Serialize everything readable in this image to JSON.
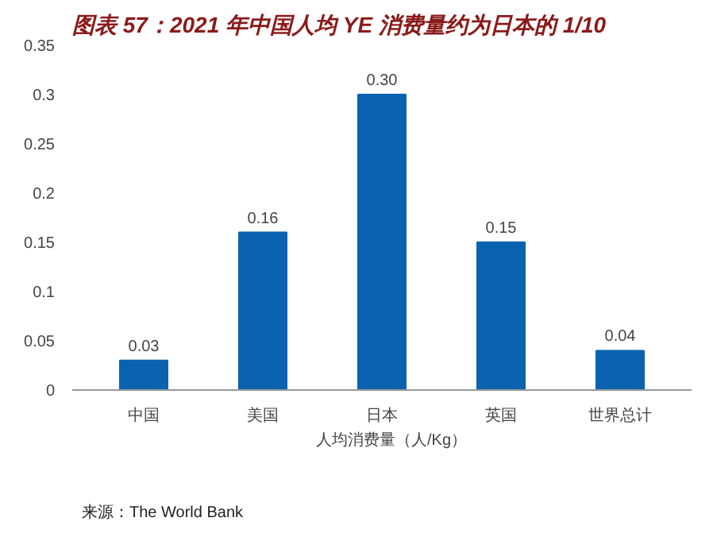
{
  "chart_data": {
    "type": "bar",
    "title": "图表 57：2021 年中国人均 YE 消费量约为日本的 1/10",
    "categories": [
      "中国",
      "美国",
      "日本",
      "英国",
      "世界总计"
    ],
    "series": [
      {
        "name": "人均消费量（人/Kg）",
        "color": "#0b62b0",
        "values": [
          0.03,
          0.16,
          0.3,
          0.15,
          0.04
        ],
        "value_labels": [
          "0.03",
          "0.16",
          "0.30",
          "0.15",
          "0.04"
        ]
      }
    ],
    "ylim": [
      0,
      0.35
    ],
    "yticks": [
      0,
      0.05,
      0.1,
      0.15,
      0.2,
      0.25,
      0.3,
      0.35
    ],
    "grid": false,
    "legend": "bottom",
    "annotations": [
      "来源：The World Bank"
    ]
  }
}
